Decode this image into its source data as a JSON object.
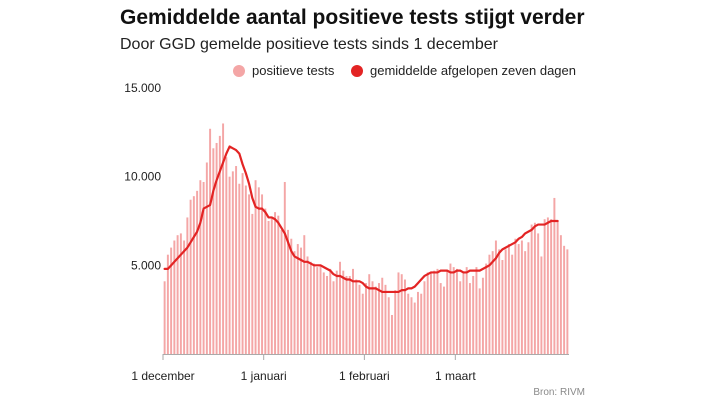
{
  "title": "Gemiddelde aantal positieve tests stijgt verder",
  "subtitle": "Door GGD gemelde positieve tests sinds 1 december",
  "legend": {
    "bars_label": "positieve tests",
    "line_label": "gemiddelde afgelopen zeven dagen"
  },
  "source": "Bron: RIVM",
  "colors": {
    "bars": "#f4a6a6",
    "line": "#e32424",
    "axis": "#aaaaaa",
    "text": "#1a1a1a"
  },
  "chart_data": {
    "type": "bar",
    "xlabel": "",
    "ylabel": "",
    "ylim": [
      0,
      15000
    ],
    "yticks": [
      {
        "value": 5000,
        "label": "5.000"
      },
      {
        "value": 10000,
        "label": "10.000"
      },
      {
        "value": 15000,
        "label": "15.000"
      }
    ],
    "xticks": [
      {
        "index": 0,
        "label": "1 december"
      },
      {
        "index": 31,
        "label": "1 januari"
      },
      {
        "index": 62,
        "label": "1 februari"
      },
      {
        "index": 90,
        "label": "1 maart"
      }
    ],
    "grid": false,
    "legend_position": "top-right",
    "series": [
      {
        "name": "positieve tests",
        "type": "bar",
        "values": [
          4100,
          5600,
          6000,
          6400,
          6700,
          6800,
          6400,
          7700,
          8700,
          8900,
          9200,
          9800,
          9700,
          10800,
          12700,
          11600,
          11900,
          12300,
          13000,
          11100,
          10000,
          10300,
          10600,
          9600,
          10200,
          9500,
          9000,
          7900,
          9800,
          9400,
          9000,
          8200,
          7500,
          7700,
          8000,
          7800,
          7000,
          9700,
          7000,
          6500,
          5800,
          6200,
          6000,
          6700,
          5500,
          5200,
          5100,
          4900,
          5000,
          4600,
          4400,
          4800,
          4100,
          4700,
          5200,
          4700,
          4400,
          4400,
          4800,
          4200,
          3900,
          3400,
          4000,
          4500,
          4100,
          3800,
          4000,
          4300,
          3900,
          3200,
          2200,
          3600,
          4600,
          4500,
          4200,
          3400,
          3200,
          2900,
          3500,
          3400,
          4100,
          4600,
          4600,
          4700,
          4800,
          4000,
          3800,
          4700,
          5100,
          4900,
          4800,
          4100,
          4600,
          4900,
          4000,
          4400,
          4900,
          3700,
          4300,
          5100,
          5600,
          5800,
          6400,
          5900,
          5300,
          5900,
          6200,
          5600,
          6500,
          6200,
          6400,
          5800,
          6300,
          7300,
          7400,
          6800,
          5500,
          7600,
          7700,
          7600,
          8800,
          7500,
          6700,
          6100,
          5900
        ]
      },
      {
        "name": "gemiddelde afgelopen zeven dagen",
        "type": "line",
        "values": [
          4800,
          4800,
          5000,
          5200,
          5400,
          5600,
          5800,
          6000,
          6300,
          6600,
          6900,
          7400,
          8200,
          8300,
          8400,
          9200,
          9800,
          10300,
          10800,
          11300,
          11700,
          11600,
          11500,
          11300,
          10700,
          10200,
          9600,
          8800,
          8300,
          8200,
          8200,
          8000,
          7700,
          7700,
          7600,
          7400,
          7100,
          6800,
          6300,
          5800,
          5500,
          5400,
          5300,
          5200,
          5200,
          5100,
          5000,
          5000,
          5000,
          4900,
          4800,
          4700,
          4500,
          4400,
          4400,
          4300,
          4200,
          4200,
          4100,
          4100,
          4100,
          4000,
          3800,
          3700,
          3700,
          3700,
          3600,
          3500,
          3500,
          3500,
          3500,
          3500,
          3500,
          3600,
          3600,
          3700,
          3700,
          3800,
          4000,
          4200,
          4400,
          4500,
          4600,
          4600,
          4600,
          4700,
          4700,
          4700,
          4600,
          4600,
          4700,
          4700,
          4600,
          4600,
          4700,
          4700,
          4700,
          4700,
          4800,
          4900,
          5000,
          5200,
          5400,
          5700,
          5900,
          6000,
          6100,
          6200,
          6300,
          6500,
          6600,
          6800,
          6900,
          7000,
          7200,
          7300,
          7300,
          7300,
          7400,
          7500,
          7500,
          7500
        ]
      }
    ]
  }
}
